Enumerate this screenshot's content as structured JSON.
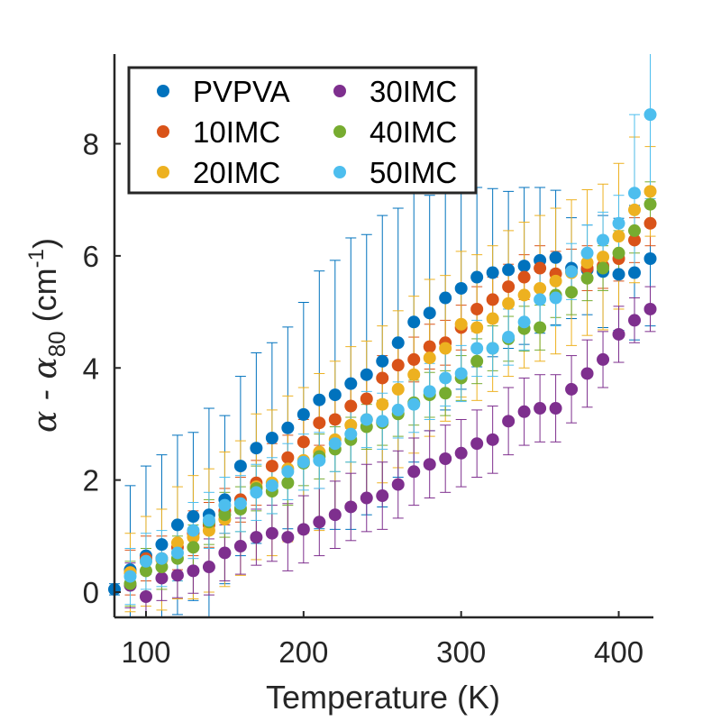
{
  "chart_data": {
    "type": "scatter",
    "xlabel": "Temperature (K)",
    "ylabel": {
      "base": "α - α",
      "subscript": "80",
      "unit_pre": " (cm",
      "superscript": "-1",
      "unit_post": ")"
    },
    "xlim": [
      80,
      422
    ],
    "ylim": [
      -0.45,
      9.6
    ],
    "xticks": [
      100,
      200,
      300,
      400
    ],
    "yticks": [
      0,
      2,
      4,
      6,
      8
    ],
    "grid": false,
    "legend_position": "top-left",
    "series": [
      {
        "name": "PVPVA",
        "color": "#0072BD",
        "points": [
          [
            80,
            0.05,
            0.1
          ],
          [
            90,
            0.4,
            1.5
          ],
          [
            100,
            0.65,
            1.6
          ],
          [
            110,
            0.85,
            1.6
          ],
          [
            120,
            1.2,
            1.6
          ],
          [
            130,
            1.35,
            1.5
          ],
          [
            140,
            1.38,
            1.9
          ],
          [
            150,
            1.65,
            1.5
          ],
          [
            160,
            2.25,
            1.6
          ],
          [
            170,
            2.57,
            1.7
          ],
          [
            180,
            2.75,
            1.7
          ],
          [
            190,
            2.93,
            1.8
          ],
          [
            200,
            3.17,
            2.0
          ],
          [
            210,
            3.43,
            2.3
          ],
          [
            220,
            3.52,
            2.4
          ],
          [
            230,
            3.72,
            2.6
          ],
          [
            240,
            3.88,
            2.5
          ],
          [
            250,
            4.12,
            2.6
          ],
          [
            260,
            4.45,
            2.4
          ],
          [
            270,
            4.82,
            2.5
          ],
          [
            280,
            4.98,
            2.1
          ],
          [
            290,
            5.25,
            2.0
          ],
          [
            300,
            5.42,
            1.8
          ],
          [
            310,
            5.62,
            1.6
          ],
          [
            320,
            5.7,
            1.5
          ],
          [
            330,
            5.75,
            1.4
          ],
          [
            340,
            5.82,
            1.4
          ],
          [
            350,
            5.92,
            1.3
          ],
          [
            360,
            5.97,
            1.2
          ],
          [
            370,
            5.78,
            0.9
          ],
          [
            380,
            5.75,
            0.8
          ],
          [
            390,
            5.72,
            1.0
          ],
          [
            400,
            5.67,
            1.0
          ],
          [
            410,
            5.7,
            1.2
          ],
          [
            420,
            5.95,
            1.2
          ]
        ]
      },
      {
        "name": "10IMC",
        "color": "#D95319",
        "points": [
          [
            90,
            0.35,
            0.4
          ],
          [
            100,
            0.6,
            0.4
          ],
          [
            110,
            0.6,
            0.4
          ],
          [
            120,
            0.8,
            0.4
          ],
          [
            130,
            1.05,
            0.4
          ],
          [
            140,
            1.2,
            0.4
          ],
          [
            150,
            1.45,
            0.4
          ],
          [
            160,
            1.65,
            0.4
          ],
          [
            170,
            1.95,
            0.4
          ],
          [
            180,
            2.25,
            0.4
          ],
          [
            190,
            2.4,
            0.4
          ],
          [
            200,
            2.68,
            0.4
          ],
          [
            210,
            3.02,
            0.4
          ],
          [
            220,
            3.08,
            0.4
          ],
          [
            230,
            3.32,
            0.4
          ],
          [
            240,
            3.45,
            0.4
          ],
          [
            250,
            3.82,
            0.4
          ],
          [
            260,
            4.05,
            0.4
          ],
          [
            270,
            4.15,
            0.4
          ],
          [
            280,
            4.38,
            0.4
          ],
          [
            290,
            4.45,
            0.4
          ],
          [
            300,
            4.72,
            0.4
          ],
          [
            310,
            5.05,
            0.4
          ],
          [
            320,
            5.22,
            0.4
          ],
          [
            330,
            5.45,
            0.4
          ],
          [
            340,
            5.62,
            0.4
          ],
          [
            350,
            5.78,
            0.4
          ],
          [
            360,
            5.68,
            0.4
          ],
          [
            370,
            5.72,
            0.4
          ],
          [
            380,
            5.78,
            0.4
          ],
          [
            390,
            5.82,
            0.4
          ],
          [
            400,
            5.95,
            0.4
          ],
          [
            410,
            6.28,
            0.4
          ],
          [
            420,
            6.58,
            0.4
          ]
        ]
      },
      {
        "name": "20IMC",
        "color": "#EDB120",
        "points": [
          [
            90,
            0.35,
            0.7
          ],
          [
            100,
            0.55,
            0.8
          ],
          [
            110,
            0.58,
            0.9
          ],
          [
            120,
            0.88,
            1.0
          ],
          [
            130,
            0.98,
            1.1
          ],
          [
            140,
            1.1,
            1.1
          ],
          [
            150,
            1.3,
            1.2
          ],
          [
            160,
            1.5,
            1.2
          ],
          [
            170,
            1.88,
            1.3
          ],
          [
            180,
            1.95,
            1.3
          ],
          [
            190,
            2.2,
            1.3
          ],
          [
            200,
            2.35,
            1.3
          ],
          [
            210,
            2.5,
            1.4
          ],
          [
            220,
            2.72,
            1.4
          ],
          [
            230,
            2.98,
            1.4
          ],
          [
            240,
            3.08,
            1.4
          ],
          [
            250,
            3.35,
            1.4
          ],
          [
            260,
            3.62,
            1.4
          ],
          [
            270,
            3.88,
            1.4
          ],
          [
            280,
            4.18,
            1.4
          ],
          [
            290,
            4.35,
            1.3
          ],
          [
            300,
            4.78,
            1.3
          ],
          [
            310,
            4.72,
            1.3
          ],
          [
            320,
            4.88,
            1.3
          ],
          [
            330,
            5.15,
            1.3
          ],
          [
            340,
            5.3,
            1.3
          ],
          [
            350,
            5.42,
            1.3
          ],
          [
            360,
            5.55,
            1.3
          ],
          [
            370,
            5.7,
            1.3
          ],
          [
            380,
            5.88,
            1.3
          ],
          [
            390,
            5.98,
            1.3
          ],
          [
            400,
            6.35,
            1.3
          ],
          [
            410,
            6.82,
            1.3
          ],
          [
            420,
            7.15,
            0.8
          ]
        ]
      },
      {
        "name": "30IMC",
        "color": "#7E2F8E",
        "points": [
          [
            90,
            0.12,
            0.4
          ],
          [
            100,
            -0.08,
            0.4
          ],
          [
            110,
            0.25,
            0.4
          ],
          [
            120,
            0.3,
            0.4
          ],
          [
            130,
            0.38,
            0.4
          ],
          [
            140,
            0.45,
            0.5
          ],
          [
            150,
            0.7,
            0.5
          ],
          [
            160,
            0.82,
            0.5
          ],
          [
            170,
            0.98,
            0.5
          ],
          [
            180,
            1.05,
            0.5
          ],
          [
            190,
            0.98,
            0.6
          ],
          [
            200,
            1.12,
            0.6
          ],
          [
            210,
            1.25,
            0.6
          ],
          [
            220,
            1.38,
            0.6
          ],
          [
            230,
            1.52,
            0.6
          ],
          [
            240,
            1.68,
            0.6
          ],
          [
            250,
            1.72,
            0.6
          ],
          [
            260,
            1.92,
            0.6
          ],
          [
            270,
            2.15,
            0.6
          ],
          [
            280,
            2.28,
            0.6
          ],
          [
            290,
            2.38,
            0.6
          ],
          [
            300,
            2.48,
            0.6
          ],
          [
            310,
            2.65,
            0.6
          ],
          [
            320,
            2.72,
            0.6
          ],
          [
            330,
            3.05,
            0.6
          ],
          [
            340,
            3.22,
            0.6
          ],
          [
            350,
            3.28,
            0.6
          ],
          [
            360,
            3.28,
            0.6
          ],
          [
            370,
            3.62,
            0.6
          ],
          [
            380,
            3.9,
            0.6
          ],
          [
            390,
            4.15,
            0.5
          ],
          [
            400,
            4.6,
            0.5
          ],
          [
            410,
            4.85,
            0.4
          ],
          [
            420,
            5.05,
            0.4
          ]
        ]
      },
      {
        "name": "40IMC",
        "color": "#77AC30",
        "points": [
          [
            90,
            0.15,
            0.4
          ],
          [
            100,
            0.38,
            0.4
          ],
          [
            110,
            0.45,
            0.4
          ],
          [
            120,
            0.6,
            0.4
          ],
          [
            130,
            0.8,
            0.4
          ],
          [
            140,
            1.25,
            0.4
          ],
          [
            150,
            1.38,
            0.4
          ],
          [
            160,
            1.48,
            0.4
          ],
          [
            170,
            1.85,
            0.4
          ],
          [
            180,
            1.8,
            0.4
          ],
          [
            190,
            1.95,
            0.4
          ],
          [
            200,
            2.3,
            0.4
          ],
          [
            210,
            2.42,
            0.4
          ],
          [
            220,
            2.55,
            0.4
          ],
          [
            230,
            2.72,
            0.4
          ],
          [
            240,
            2.95,
            0.4
          ],
          [
            250,
            3.02,
            0.4
          ],
          [
            260,
            3.18,
            0.4
          ],
          [
            270,
            3.38,
            0.4
          ],
          [
            280,
            3.52,
            0.4
          ],
          [
            290,
            3.55,
            0.4
          ],
          [
            300,
            3.82,
            0.4
          ],
          [
            310,
            4.12,
            0.4
          ],
          [
            320,
            4.35,
            0.4
          ],
          [
            330,
            4.52,
            0.4
          ],
          [
            340,
            4.7,
            0.4
          ],
          [
            350,
            4.72,
            0.4
          ],
          [
            360,
            5.3,
            0.4
          ],
          [
            370,
            5.35,
            0.4
          ],
          [
            380,
            5.6,
            0.4
          ],
          [
            390,
            5.78,
            0.4
          ],
          [
            400,
            6.05,
            0.4
          ],
          [
            410,
            6.45,
            0.4
          ],
          [
            420,
            6.92,
            0.4
          ]
        ]
      },
      {
        "name": "50IMC",
        "color": "#4DBEEE",
        "points": [
          [
            90,
            0.28,
            0.5
          ],
          [
            100,
            0.55,
            0.5
          ],
          [
            110,
            0.6,
            0.5
          ],
          [
            120,
            0.7,
            0.5
          ],
          [
            130,
            1.1,
            0.5
          ],
          [
            140,
            1.28,
            0.5
          ],
          [
            150,
            1.55,
            0.5
          ],
          [
            160,
            1.58,
            0.5
          ],
          [
            170,
            1.78,
            0.5
          ],
          [
            180,
            1.9,
            0.5
          ],
          [
            190,
            2.15,
            0.5
          ],
          [
            200,
            2.32,
            0.5
          ],
          [
            210,
            2.35,
            0.5
          ],
          [
            220,
            2.65,
            0.5
          ],
          [
            230,
            2.82,
            0.5
          ],
          [
            240,
            3.08,
            0.5
          ],
          [
            250,
            3.05,
            0.5
          ],
          [
            260,
            3.25,
            0.5
          ],
          [
            270,
            3.35,
            0.5
          ],
          [
            280,
            3.58,
            0.5
          ],
          [
            290,
            3.82,
            0.5
          ],
          [
            300,
            3.9,
            0.5
          ],
          [
            310,
            4.35,
            0.5
          ],
          [
            320,
            4.35,
            0.5
          ],
          [
            330,
            4.55,
            0.5
          ],
          [
            340,
            4.82,
            0.5
          ],
          [
            350,
            5.22,
            0.5
          ],
          [
            360,
            5.25,
            0.5
          ],
          [
            370,
            5.72,
            0.5
          ],
          [
            380,
            6.05,
            0.5
          ],
          [
            390,
            6.28,
            0.5
          ],
          [
            400,
            6.58,
            0.5
          ],
          [
            410,
            7.12,
            1.4
          ],
          [
            420,
            8.52,
            1.5
          ]
        ]
      }
    ]
  }
}
